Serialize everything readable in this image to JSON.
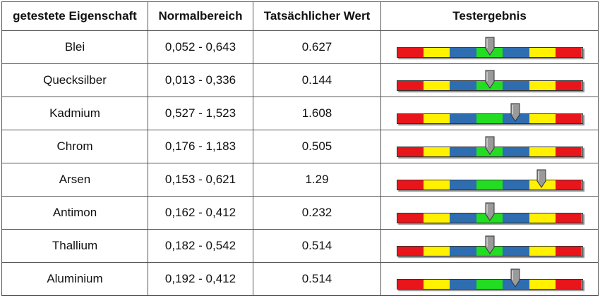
{
  "table": {
    "headers": {
      "property": "getestete Eigenschaft",
      "normal_range": "Normalbereich",
      "actual_value": "Tatsächlicher Wert",
      "result": "Testergebnis"
    },
    "gauge_colors": [
      "#e8151b",
      "#fff100",
      "#2e6db0",
      "#22dd22",
      "#2e6db0",
      "#fff100",
      "#e8151b"
    ],
    "marker_color": "#9a9a9a",
    "rows": [
      {
        "property": "Blei",
        "range": "0,052 - 0,643",
        "value": "0.627",
        "gauge_position": 0.5
      },
      {
        "property": "Quecksilber",
        "range": "0,013 - 0,336",
        "value": "0.144",
        "gauge_position": 0.5
      },
      {
        "property": "Kadmium",
        "range": "0,527 - 1,523",
        "value": "1.608",
        "gauge_position": 0.64
      },
      {
        "property": "Chrom",
        "range": "0,176 - 1,183",
        "value": "0.505",
        "gauge_position": 0.5
      },
      {
        "property": "Arsen",
        "range": "0,153 - 0,621",
        "value": "1.29",
        "gauge_position": 0.78
      },
      {
        "property": "Antimon",
        "range": "0,162 - 0,412",
        "value": "0.232",
        "gauge_position": 0.5
      },
      {
        "property": "Thallium",
        "range": "0,182 - 0,542",
        "value": "0.514",
        "gauge_position": 0.5
      },
      {
        "property": "Aluminium",
        "range": "0,192 - 0,412",
        "value": "0.514",
        "gauge_position": 0.64
      }
    ]
  }
}
